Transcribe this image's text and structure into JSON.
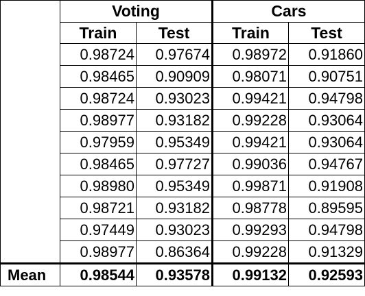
{
  "table": {
    "groups": [
      "Voting",
      "Cars"
    ],
    "splits": [
      "Train",
      "Test",
      "Train",
      "Test"
    ],
    "rows": [
      [
        "0.98724",
        "0.97674",
        "0.98972",
        "0.91860"
      ],
      [
        "0.98465",
        "0.90909",
        "0.98071",
        "0.90751"
      ],
      [
        "0.98724",
        "0.93023",
        "0.99421",
        "0.94798"
      ],
      [
        "0.98977",
        "0.93182",
        "0.99228",
        "0.93064"
      ],
      [
        "0.97959",
        "0.95349",
        "0.99421",
        "0.93064"
      ],
      [
        "0.98465",
        "0.97727",
        "0.99036",
        "0.94767"
      ],
      [
        "0.98980",
        "0.95349",
        "0.99871",
        "0.91908"
      ],
      [
        "0.98721",
        "0.93182",
        "0.98778",
        "0.89595"
      ],
      [
        "0.97449",
        "0.93023",
        "0.99293",
        "0.94798"
      ],
      [
        "0.98977",
        "0.86364",
        "0.99228",
        "0.91329"
      ]
    ],
    "mean": {
      "label": "Mean",
      "values": [
        "0.98544",
        "0.93578",
        "0.99132",
        "0.92593"
      ]
    }
  }
}
